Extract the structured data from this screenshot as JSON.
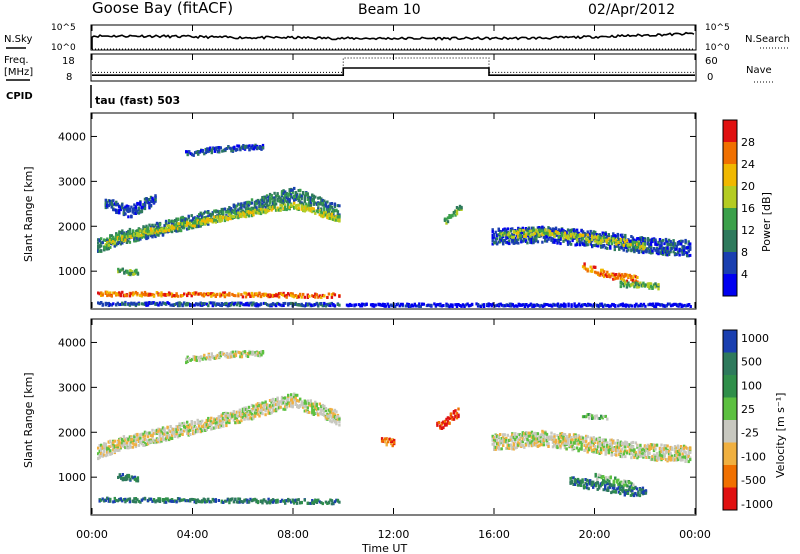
{
  "header": {
    "station": "Goose Bay (fitACF)",
    "beam": "Beam 10",
    "date": "02/Apr/2012"
  },
  "top_panel": {
    "nsky_label": "N.Sky",
    "nsearch_label": "N.Search",
    "noise_ticks": [
      "10^5",
      "10^0"
    ],
    "freq_label": "Freq.",
    "freq_unit": "[MHz]",
    "freq_ticks": [
      "18",
      "8"
    ],
    "nave_label": "Nave",
    "nave_ticks": [
      "60",
      "0"
    ],
    "cpid_label": "CPID",
    "cpid_value": "tau (fast) 503"
  },
  "time_axis": {
    "ticks": [
      "00:00",
      "04:00",
      "08:00",
      "12:00",
      "16:00",
      "20:00",
      "00:00"
    ],
    "label": "Time UT"
  },
  "power_panel": {
    "ylabel": "Slant Range [km]",
    "yticks": [
      "4000",
      "3000",
      "2000",
      "1000"
    ],
    "colorbar_label": "Power [dB]",
    "colorbar_ticks": [
      "28",
      "24",
      "20",
      "16",
      "12",
      "8",
      "4"
    ],
    "colors": [
      "#0000f0",
      "#1a3fb0",
      "#2e7a5c",
      "#3ba04a",
      "#b4cc22",
      "#f0b800",
      "#f07000",
      "#e01010"
    ]
  },
  "velocity_panel": {
    "ylabel": "Slant Range [km]",
    "yticks": [
      "4000",
      "3000",
      "2000",
      "1000"
    ],
    "colorbar_label": "Velocity [m s⁻¹]",
    "colorbar_ticks": [
      "1000",
      "500",
      "100",
      "25",
      "-25",
      "-100",
      "-500",
      "-1000"
    ],
    "colors": [
      "#1a3fb0",
      "#2e7a5c",
      "#2f8f4a",
      "#5cc040",
      "#c8c8c0",
      "#f0b040",
      "#f07000",
      "#e01010"
    ]
  },
  "chart_data": [
    {
      "type": "line",
      "title": "Goose Bay (fitACF)",
      "series": [
        {
          "name": "N.Sky",
          "x": [
            0,
            2,
            4,
            6,
            8,
            10,
            12,
            14,
            16,
            18,
            20,
            22,
            24
          ],
          "values": [
            3,
            3,
            2.8,
            2.6,
            2.6,
            2.4,
            2.4,
            2.4,
            2.4,
            2.5,
            2.8,
            3.2,
            3.6
          ]
        },
        {
          "name": "N.Search",
          "x": [
            0,
            24
          ],
          "values": [
            0,
            0
          ]
        }
      ],
      "ylim": [
        0,
        5
      ]
    },
    {
      "type": "line",
      "series": [
        {
          "name": "Freq.",
          "x": [
            0,
            10,
            10,
            15.8,
            15.8,
            24
          ],
          "values": [
            10,
            10,
            13,
            13,
            10,
            10
          ]
        },
        {
          "name": "Nave",
          "x": [
            0,
            10,
            10,
            15.8,
            15.8,
            24
          ],
          "values": [
            12,
            12,
            18,
            18,
            12,
            12
          ]
        }
      ],
      "ylim": [
        8,
        18
      ]
    },
    {
      "type": "heatmap",
      "xlabel": "Time UT",
      "ylabel": "Slant Range [km]",
      "xlim": [
        0,
        24
      ],
      "ylim": [
        180,
        4500
      ],
      "colorbar": "Power [dB]",
      "bands": [
        {
          "x": [
            0.2,
            1.2,
            2.5,
            4,
            5.5,
            7,
            8,
            9.8
          ],
          "y": [
            1550,
            1750,
            1900,
            2100,
            2300,
            2550,
            2700,
            2300
          ],
          "w": 300,
          "level": 2
        },
        {
          "x": [
            0.5,
            2,
            4,
            6,
            8,
            9.8
          ],
          "y": [
            1600,
            1850,
            2050,
            2250,
            2450,
            2150
          ],
          "w": 120,
          "level": 4
        },
        {
          "x": [
            0.2,
            3,
            6,
            9.8
          ],
          "y": [
            480,
            470,
            460,
            440
          ],
          "w": 90,
          "level": 6
        },
        {
          "x": [
            0.2,
            5,
            9.8
          ],
          "y": [
            260,
            250,
            240
          ],
          "w": 70,
          "level": 1
        },
        {
          "x": [
            0.5,
            1.5,
            2.5
          ],
          "y": [
            2500,
            2300,
            2600
          ],
          "w": 250,
          "level": 1
        },
        {
          "x": [
            3.7,
            5,
            6.8
          ],
          "y": [
            3600,
            3700,
            3750
          ],
          "w": 120,
          "level": 1
        },
        {
          "x": [
            1,
            1.8
          ],
          "y": [
            1000,
            950
          ],
          "w": 120,
          "level": 3
        },
        {
          "x": [
            15.9,
            18,
            20,
            22,
            23.8
          ],
          "y": [
            1750,
            1800,
            1700,
            1550,
            1500
          ],
          "w": 350,
          "level": 1
        },
        {
          "x": [
            16.2,
            18,
            20,
            22
          ],
          "y": [
            1800,
            1850,
            1700,
            1550
          ],
          "w": 150,
          "level": 4
        },
        {
          "x": [
            19.5,
            20.5,
            21.7
          ],
          "y": [
            1100,
            900,
            800
          ],
          "w": 150,
          "level": 6
        },
        {
          "x": [
            21,
            22.5
          ],
          "y": [
            700,
            650
          ],
          "w": 120,
          "level": 3
        },
        {
          "x": [
            14,
            14.7
          ],
          "y": [
            2100,
            2450
          ],
          "w": 150,
          "level": 3
        },
        {
          "x": [
            10.1,
            23.8
          ],
          "y": [
            230,
            230
          ],
          "w": 60,
          "level": 0
        }
      ]
    },
    {
      "type": "heatmap",
      "xlabel": "Time UT",
      "ylabel": "Slant Range [km]",
      "xlim": [
        0,
        24
      ],
      "ylim": [
        180,
        4500
      ],
      "colorbar": "Velocity [m s⁻¹]",
      "bands": [
        {
          "x": [
            0.2,
            1.2,
            2.5,
            4,
            5.5,
            7,
            8,
            9.8
          ],
          "y": [
            1550,
            1750,
            1900,
            2100,
            2300,
            2550,
            2700,
            2300
          ],
          "w": 300,
          "level": 4
        },
        {
          "x": [
            0.2,
            3,
            6,
            9.8
          ],
          "y": [
            480,
            470,
            460,
            440
          ],
          "w": 90,
          "level": 1
        },
        {
          "x": [
            3.7,
            5,
            6.8
          ],
          "y": [
            3600,
            3700,
            3750
          ],
          "w": 120,
          "level": 4
        },
        {
          "x": [
            13.7,
            14.6
          ],
          "y": [
            2100,
            2450
          ],
          "w": 200,
          "level": 7
        },
        {
          "x": [
            11.5,
            12
          ],
          "y": [
            1800,
            1750
          ],
          "w": 150,
          "level": 6
        },
        {
          "x": [
            15.9,
            18,
            20,
            22,
            23.8
          ],
          "y": [
            1750,
            1850,
            1700,
            1550,
            1500
          ],
          "w": 350,
          "level": 4
        },
        {
          "x": [
            19.5,
            20.5
          ],
          "y": [
            2350,
            2300
          ],
          "w": 100,
          "level": 3
        },
        {
          "x": [
            19,
            21,
            22
          ],
          "y": [
            900,
            700,
            650
          ],
          "w": 200,
          "level": 1
        },
        {
          "x": [
            20,
            21.5
          ],
          "y": [
            1000,
            800
          ],
          "w": 150,
          "level": 3
        },
        {
          "x": [
            1,
            1.8
          ],
          "y": [
            1000,
            950
          ],
          "w": 120,
          "level": 1
        }
      ]
    }
  ]
}
